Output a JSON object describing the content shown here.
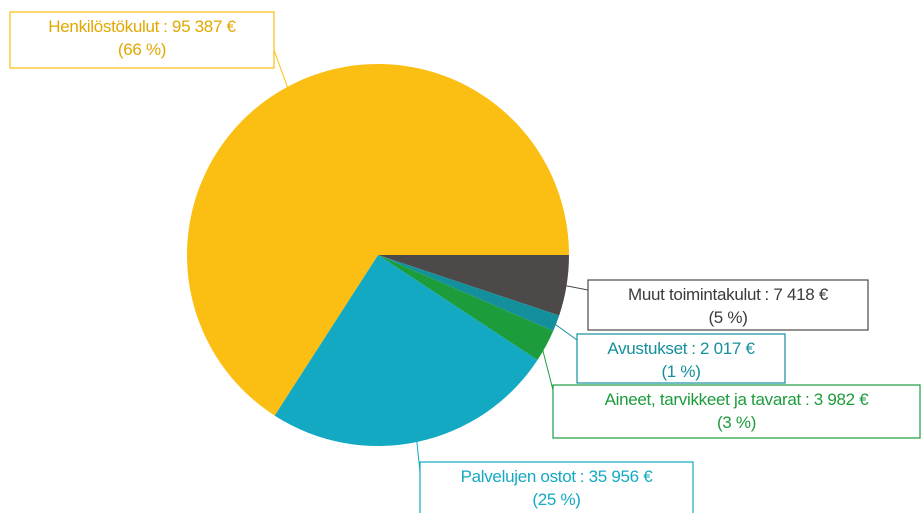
{
  "chart_data": {
    "type": "pie",
    "categories": [
      "Muut toimintakulut",
      "Avustukset",
      "Aineet, tarvikkeet ja tavarat",
      "Palvelujen ostot",
      "Henkilöstökulut"
    ],
    "values": [
      7418,
      2017,
      3982,
      35956,
      95387
    ],
    "value_labels": [
      ": 7 418 €",
      ": 2 017 €",
      ": 3 982 €",
      ": 35 956 €",
      ": 95 387 €"
    ],
    "percent_labels": [
      "(5 %)",
      "(1 %)",
      "(3 %)",
      "(25 %)",
      "(66 %)"
    ],
    "colors": [
      "#4d4948",
      "#13909c",
      "#1d9c3c",
      "#14a9c2",
      "#fbbe12"
    ]
  }
}
